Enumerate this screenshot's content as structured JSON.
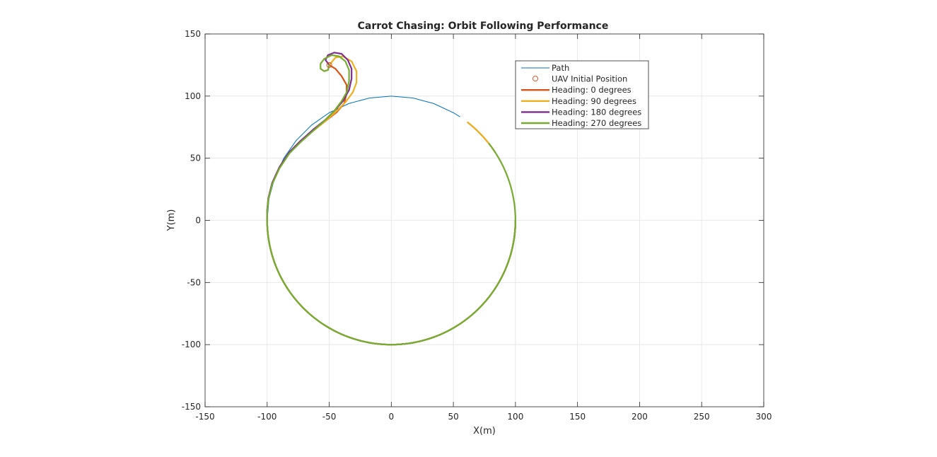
{
  "chart_data": {
    "type": "line",
    "title": "Carrot Chasing: Orbit Following Performance",
    "xlabel": "X(m)",
    "ylabel": "Y(m)",
    "xlim": [
      -150,
      300
    ],
    "ylim": [
      -150,
      150
    ],
    "xticks": [
      -150,
      -100,
      -50,
      0,
      50,
      100,
      150,
      200,
      250,
      300
    ],
    "yticks": [
      -150,
      -100,
      -50,
      0,
      50,
      100,
      150
    ],
    "grid": true,
    "legend_location": "top-right",
    "orbit": {
      "center": [
        0,
        0
      ],
      "radius": 100
    },
    "uav_initial_position": [
      -50,
      125
    ],
    "series": [
      {
        "name": "Path",
        "kind": "line",
        "color": "#0072BD",
        "thin": true,
        "points": [
          [
            -100,
            0
          ],
          [
            -98.5,
            17.4
          ],
          [
            -94,
            34.2
          ],
          [
            -86.6,
            50
          ],
          [
            -76.6,
            64.3
          ],
          [
            -64.3,
            76.6
          ],
          [
            -50,
            86.6
          ],
          [
            -34.2,
            94
          ],
          [
            -17.4,
            98.5
          ],
          [
            0,
            100
          ],
          [
            17.4,
            98.5
          ],
          [
            34.2,
            94
          ],
          [
            50,
            86.6
          ],
          [
            55.4,
            83.3
          ]
        ]
      },
      {
        "name": "UAV Initial Position",
        "kind": "marker",
        "color": "#D95319"
      },
      {
        "name": "Heading: 0 degrees",
        "kind": "line",
        "color": "#D95319",
        "points": [
          [
            -50,
            125
          ],
          [
            -45,
            122
          ],
          [
            -40,
            116
          ],
          [
            -36,
            109
          ],
          [
            -36,
            102
          ],
          [
            -38,
            94
          ],
          [
            -44,
            87
          ],
          [
            -53,
            80
          ],
          [
            -63,
            72
          ],
          [
            -73,
            64
          ],
          [
            -82,
            55
          ],
          [
            -90,
            43
          ],
          [
            -96,
            30
          ],
          [
            -99,
            18
          ],
          [
            -100,
            8
          ]
        ],
        "tail_arc_deg": [
          33,
          52
        ]
      },
      {
        "name": "Heading: 90 degrees",
        "kind": "line",
        "color": "#EDB120",
        "points": [
          [
            -50,
            125
          ],
          [
            -45,
            131
          ],
          [
            -39,
            132
          ],
          [
            -32,
            128
          ],
          [
            -28,
            120
          ],
          [
            -28,
            111
          ],
          [
            -31,
            103
          ],
          [
            -37,
            95
          ],
          [
            -44,
            88
          ],
          [
            -53,
            80
          ],
          [
            -63,
            72
          ],
          [
            -73,
            64
          ],
          [
            -82,
            55
          ],
          [
            -90,
            43
          ],
          [
            -96,
            30
          ],
          [
            -99,
            18
          ],
          [
            -100,
            8
          ]
        ],
        "tail_arc_deg": [
          38,
          52
        ]
      },
      {
        "name": "Heading: 180 degrees",
        "kind": "line",
        "color": "#7E2F8E",
        "points": [
          [
            -50,
            125
          ],
          [
            -53,
            129
          ],
          [
            -51,
            133
          ],
          [
            -46,
            135
          ],
          [
            -40,
            134
          ],
          [
            -35,
            129
          ],
          [
            -32,
            122
          ],
          [
            -32,
            114
          ],
          [
            -34,
            105
          ],
          [
            -39,
            96
          ],
          [
            -45,
            89
          ],
          [
            -53,
            81
          ],
          [
            -63,
            73
          ],
          [
            -73,
            64
          ],
          [
            -82,
            55
          ],
          [
            -90,
            43
          ],
          [
            -96,
            30
          ],
          [
            -99,
            18
          ],
          [
            -100,
            8
          ]
        ]
      },
      {
        "name": "Heading: 270 degrees",
        "kind": "line",
        "color": "#77AC30",
        "points": [
          [
            -50,
            125
          ],
          [
            -51,
            121
          ],
          [
            -54,
            120
          ],
          [
            -57,
            122
          ],
          [
            -57,
            126
          ],
          [
            -54,
            130
          ],
          [
            -48,
            133
          ],
          [
            -42,
            132
          ],
          [
            -37,
            128
          ],
          [
            -34,
            121
          ],
          [
            -34,
            112
          ],
          [
            -36,
            103
          ],
          [
            -40,
            96
          ],
          [
            -46,
            88
          ],
          [
            -54,
            80
          ],
          [
            -63,
            72
          ],
          [
            -73,
            63
          ],
          [
            -82,
            54
          ],
          [
            -90,
            42
          ],
          [
            -96,
            29
          ],
          [
            -99,
            17
          ],
          [
            -100,
            7
          ]
        ],
        "tail_arc_deg": [
          -180,
          38
        ]
      }
    ]
  }
}
